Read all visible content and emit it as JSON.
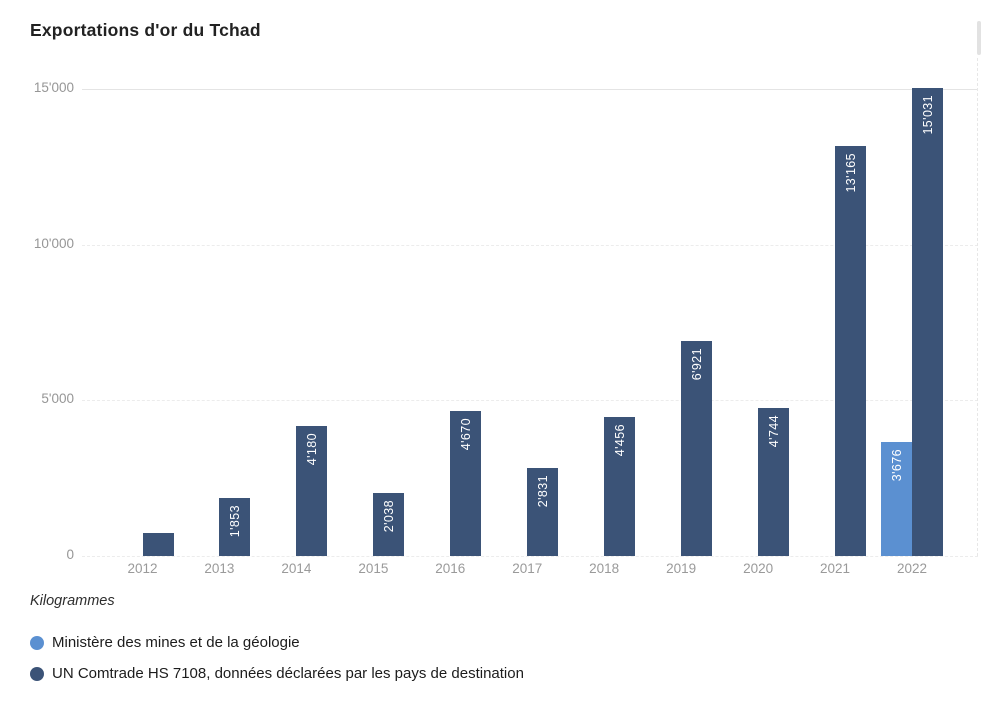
{
  "chart_data": {
    "type": "bar",
    "title": "Exportations d'or du Tchad",
    "ylabel": "Kilogrammes",
    "ylim": [
      0,
      15000
    ],
    "grid": "horizontal-dashed",
    "legend_position": "bottom-left",
    "categories": [
      "2012",
      "2013",
      "2014",
      "2015",
      "2016",
      "2017",
      "2018",
      "2019",
      "2020",
      "2021",
      "2022"
    ],
    "yticks": [
      {
        "value": 0,
        "label": "0"
      },
      {
        "value": 5000,
        "label": "5'000"
      },
      {
        "value": 10000,
        "label": "10'000"
      },
      {
        "value": 15000,
        "label": "15'000"
      }
    ],
    "series": [
      {
        "name": "Ministère des mines et de la géologie",
        "color": "#5b90d1",
        "values": [
          null,
          null,
          null,
          null,
          null,
          null,
          null,
          null,
          null,
          null,
          3676
        ],
        "bar_labels": [
          null,
          null,
          null,
          null,
          null,
          null,
          null,
          null,
          null,
          null,
          "3'676"
        ]
      },
      {
        "name": "UN Comtrade HS 7108, données déclarées par les pays de destination",
        "color": "#3b5377",
        "values": [
          740,
          1853,
          4180,
          2038,
          4670,
          2831,
          4456,
          6921,
          4744,
          13165,
          15031
        ],
        "bar_labels": [
          "",
          "1'853",
          "4'180",
          "2'038",
          "4'670",
          "2'831",
          "4'456",
          "6'921",
          "4'744",
          "13'165",
          "15'031"
        ]
      }
    ]
  }
}
